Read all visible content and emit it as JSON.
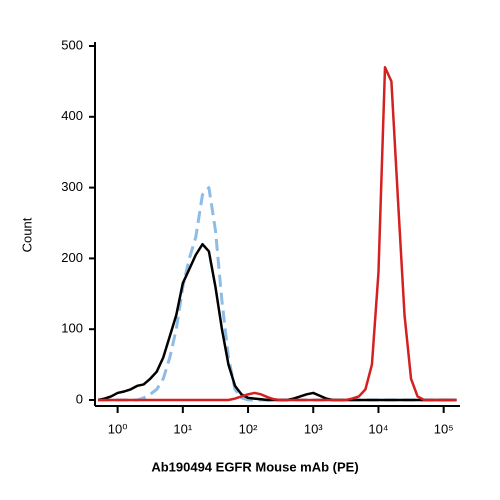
{
  "chart_data": {
    "type": "line",
    "x_label": "Ab190494 EGFR Mouse mAb (PE)",
    "y_label": "Count",
    "x_log": true,
    "x": [
      0.501,
      0.631,
      0.794,
      1,
      1.26,
      1.58,
      2,
      2.51,
      3.16,
      3.98,
      5.01,
      6.31,
      7.94,
      10,
      12.6,
      15.8,
      20,
      25.1,
      31.6,
      39.8,
      50.1,
      63.1,
      79.4,
      100,
      126,
      158,
      200,
      251,
      316,
      398,
      501,
      631,
      794,
      1000,
      1260,
      1580,
      2000,
      2510,
      3160,
      3980,
      5010,
      6310,
      7940,
      10000,
      12600,
      15800,
      20000,
      25100,
      31600,
      39800,
      50100,
      63100,
      79400,
      100000,
      126000,
      158000
    ],
    "series": [
      {
        "color": "#000000",
        "dash": false,
        "values": [
          0,
          2,
          5,
          10,
          12,
          15,
          20,
          22,
          30,
          40,
          60,
          90,
          120,
          165,
          185,
          205,
          220,
          210,
          160,
          100,
          50,
          20,
          8,
          3,
          2,
          1,
          0,
          0,
          0,
          0,
          2,
          5,
          8,
          10,
          6,
          2,
          0,
          0,
          0,
          0,
          0,
          0,
          0,
          0,
          0,
          0,
          0,
          0,
          0,
          0,
          0,
          0,
          0,
          0,
          0,
          0
        ]
      },
      {
        "color": "#8dbde6",
        "dash": true,
        "values": [
          0,
          0,
          0,
          0,
          0,
          0,
          0,
          3,
          8,
          15,
          30,
          60,
          100,
          160,
          200,
          230,
          290,
          300,
          240,
          140,
          60,
          15,
          3,
          0,
          0,
          0,
          0,
          0,
          0,
          0,
          0,
          0,
          0,
          0,
          0,
          0,
          0,
          0,
          0,
          0,
          0,
          0,
          0,
          0,
          0,
          0,
          0,
          0,
          0,
          0,
          0,
          0,
          0,
          0,
          0,
          0
        ]
      },
      {
        "color": "#d42020",
        "dash": false,
        "values": [
          0,
          0,
          0,
          0,
          0,
          0,
          0,
          0,
          0,
          0,
          0,
          0,
          0,
          0,
          0,
          0,
          0,
          0,
          0,
          0,
          0,
          2,
          5,
          8,
          10,
          8,
          4,
          1,
          0,
          0,
          0,
          0,
          0,
          0,
          0,
          0,
          0,
          0,
          0,
          2,
          5,
          15,
          50,
          180,
          470,
          450,
          280,
          120,
          30,
          5,
          0,
          0,
          0,
          0,
          0,
          0
        ]
      }
    ],
    "xlim": [
      0.45,
      178000
    ],
    "xticks": [
      {
        "value": 1,
        "label": "10⁰"
      },
      {
        "value": 10,
        "label": "10¹"
      },
      {
        "value": 100,
        "label": "10²"
      },
      {
        "value": 1000,
        "label": "10³"
      },
      {
        "value": 10000,
        "label": "10⁴"
      },
      {
        "value": 100000,
        "label": "10⁵"
      }
    ],
    "ylim": [
      0,
      500
    ],
    "yticks": [
      0,
      100,
      200,
      300,
      400,
      500
    ]
  }
}
